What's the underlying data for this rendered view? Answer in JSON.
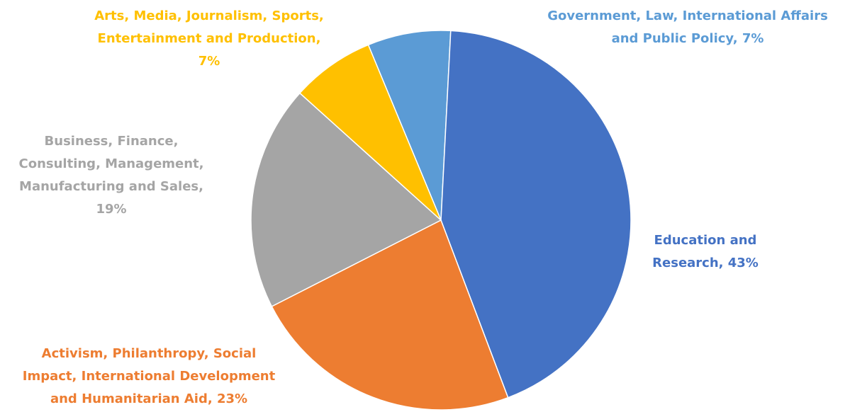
{
  "chart_data": {
    "type": "pie",
    "title": "",
    "slices": [
      {
        "label": "Government, Law, International Affairs and Public Policy",
        "value": 7,
        "value_label": "7%",
        "color": "#5B9BD5",
        "label_lines": [
          "Government, Law, International Affairs",
          "and Public Policy, 7%"
        ]
      },
      {
        "label": "Education and Research",
        "value": 43,
        "value_label": "43%",
        "color": "#4472C4",
        "label_lines": [
          "Education and",
          "Research, 43%"
        ]
      },
      {
        "label": "Activism, Philanthropy, Social Impact, International Development and Humanitarian Aid",
        "value": 23,
        "value_label": "23%",
        "color": "#ED7D31",
        "label_lines": [
          "Activism, Philanthropy, Social",
          "Impact, International Development",
          "and Humanitarian Aid, 23%"
        ]
      },
      {
        "label": "Business, Finance, Consulting, Management, Manufacturing and Sales",
        "value": 19,
        "value_label": "19%",
        "color": "#A5A5A5",
        "label_lines": [
          "Business, Finance,",
          "Consulting, Management,",
          "Manufacturing and Sales,",
          "19%"
        ]
      },
      {
        "label": "Arts, Media, Journalism, Sports, Entertainment and Production",
        "value": 7,
        "value_label": "7%",
        "color": "#FFC000",
        "label_lines": [
          "Arts, Media, Journalism, Sports,",
          "Entertainment and Production,",
          "7%"
        ]
      }
    ],
    "legend": "none"
  }
}
